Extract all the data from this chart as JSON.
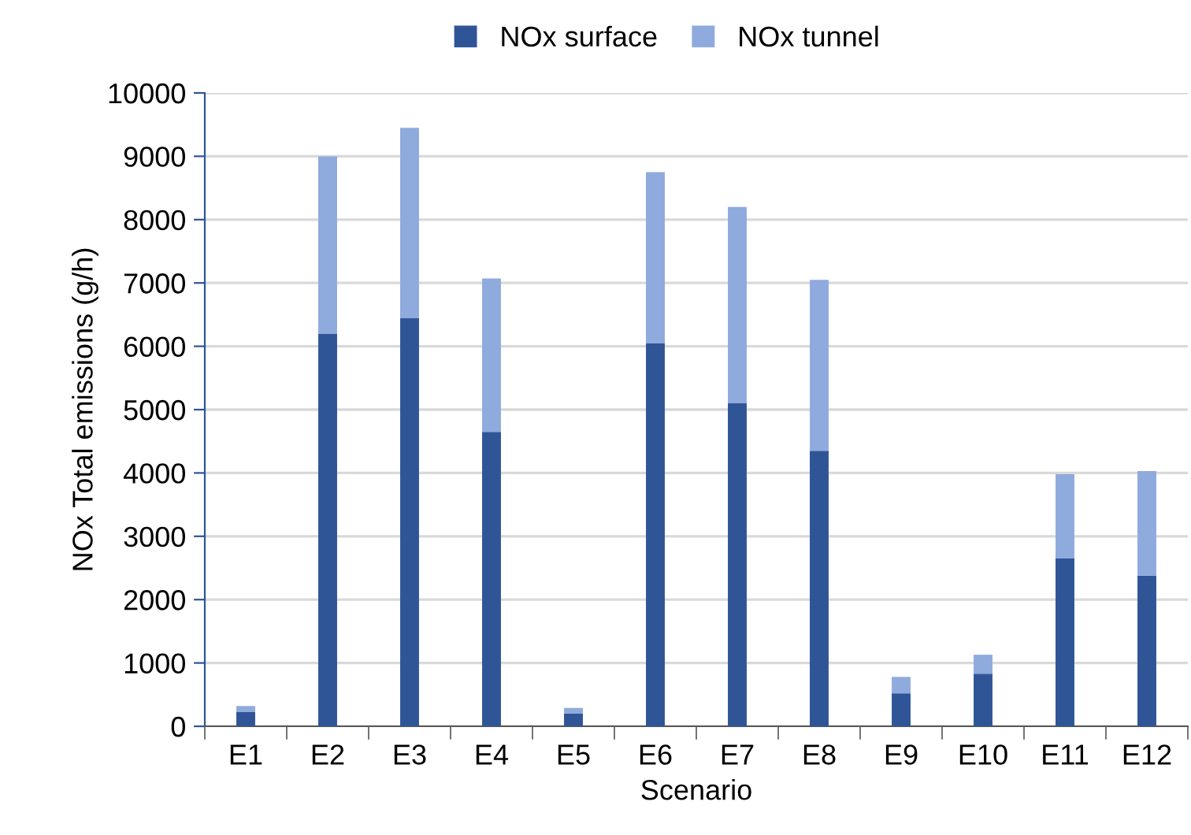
{
  "chart_data": {
    "type": "bar",
    "stacked": true,
    "xlabel": "Scenario",
    "ylabel": "NOx Total emissions (g/h)",
    "categories": [
      "E1",
      "E2",
      "E3",
      "E4",
      "E5",
      "E6",
      "E7",
      "E8",
      "E9",
      "E10",
      "E11",
      "E12"
    ],
    "series": [
      {
        "name": "NOx surface",
        "color": "#2f5597",
        "values": [
          230,
          6200,
          6450,
          4650,
          200,
          6050,
          5100,
          4350,
          520,
          830,
          2650,
          2380
        ]
      },
      {
        "name": "NOx tunnel",
        "color": "#8faadc",
        "values": [
          90,
          2800,
          3000,
          2420,
          90,
          2700,
          3100,
          2700,
          260,
          300,
          1330,
          1650
        ]
      }
    ],
    "ylim": [
      0,
      10000
    ],
    "yticks": [
      0,
      1000,
      2000,
      3000,
      4000,
      5000,
      6000,
      7000,
      8000,
      9000,
      10000
    ],
    "grid": "y",
    "legend": "top"
  }
}
